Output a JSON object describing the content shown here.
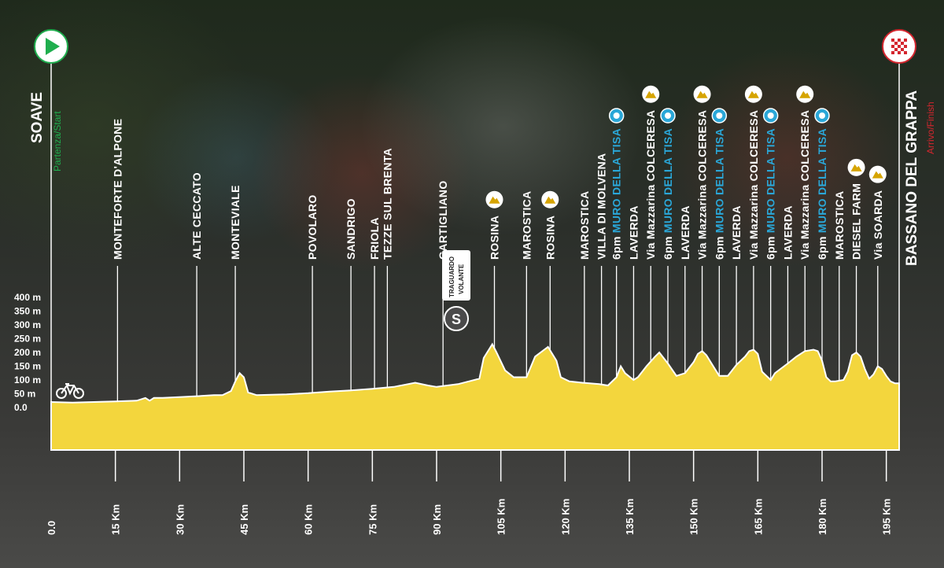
{
  "start": {
    "name": "SOAVE",
    "label": "Partenza/Start"
  },
  "finish": {
    "name": "BASSANO DEL GRAPPA",
    "label": "Arrivo/Finish"
  },
  "sprint": {
    "line1": "TRAGUARDO",
    "line2": "VOLANTE",
    "icon": "S"
  },
  "colors": {
    "profile": "#f3d63d",
    "start": "#1fae4e",
    "finish": "#d4262e",
    "gpm_text": "#2aa7d8"
  },
  "chart_data": {
    "type": "area",
    "xlabel": "",
    "ylabel": "",
    "x_unit": "Km",
    "y_unit": "m",
    "xlim": [
      0,
      198
    ],
    "ylim": [
      0,
      400
    ],
    "y_ticks": [
      "0.0",
      "50 m",
      "100 m",
      "150 m",
      "200 m",
      "250 m",
      "300 m",
      "350 m",
      "400 m"
    ],
    "x_ticks": [
      "0.0",
      "15 Km",
      "30 Km",
      "45 Km",
      "60 Km",
      "75 Km",
      "90 Km",
      "105 Km",
      "120 Km",
      "135 Km",
      "150 Km",
      "165 Km",
      "180 Km",
      "195 Km"
    ],
    "profile": {
      "x": [
        0,
        5,
        10,
        15,
        20,
        22,
        23,
        24,
        26,
        30,
        35,
        38,
        40,
        42,
        43,
        44,
        45,
        46,
        48,
        55,
        60,
        65,
        70,
        75,
        80,
        85,
        88,
        90,
        95,
        100,
        101,
        103,
        104,
        106,
        108,
        111,
        113,
        116,
        118,
        119,
        121,
        124,
        128,
        130,
        132,
        133,
        134,
        136,
        137,
        139,
        141,
        142,
        144,
        146,
        148,
        150,
        151,
        152,
        153,
        154,
        156,
        158,
        160,
        162,
        163,
        164,
        165,
        166,
        168,
        169,
        172,
        174,
        176,
        178,
        179,
        180,
        181,
        182,
        183,
        185,
        186,
        187,
        188,
        189,
        190,
        191,
        192,
        193,
        194,
        195,
        196,
        197,
        198
      ],
      "y": [
        20,
        18,
        20,
        22,
        25,
        35,
        25,
        35,
        35,
        38,
        42,
        45,
        45,
        60,
        95,
        125,
        110,
        55,
        45,
        48,
        52,
        58,
        62,
        68,
        75,
        90,
        80,
        75,
        85,
        105,
        180,
        230,
        200,
        135,
        110,
        110,
        185,
        220,
        170,
        110,
        95,
        90,
        85,
        80,
        110,
        150,
        125,
        100,
        110,
        150,
        185,
        200,
        160,
        115,
        125,
        165,
        195,
        205,
        190,
        165,
        115,
        115,
        155,
        185,
        205,
        210,
        195,
        130,
        100,
        125,
        160,
        185,
        205,
        210,
        205,
        170,
        110,
        95,
        95,
        100,
        130,
        190,
        200,
        185,
        140,
        105,
        120,
        150,
        140,
        115,
        95,
        88,
        88
      ]
    },
    "locations": [
      {
        "km": 15.5,
        "name": "MONTEFORTE D'ALPONE"
      },
      {
        "km": 34,
        "name": "ALTE CECCATO"
      },
      {
        "km": 43,
        "name": "MONTEVIALE"
      },
      {
        "km": 61,
        "name": "POVOLARO"
      },
      {
        "km": 70,
        "name": "SANDRIGO"
      },
      {
        "km": 75.5,
        "name": "FRIOLA"
      },
      {
        "km": 78.5,
        "name": "TEZZE SUL BRENTA"
      },
      {
        "km": 91.5,
        "name": "CARTIGLIANO"
      },
      {
        "km": 103.5,
        "name": "ROSINA",
        "climb": true
      },
      {
        "km": 111,
        "name": "MAROSTICA"
      },
      {
        "km": 116.5,
        "name": "ROSINA",
        "climb": true
      },
      {
        "km": 124.5,
        "name": "MAROSTICA"
      },
      {
        "km": 128.5,
        "name": "VILLA DI MOLVENA"
      },
      {
        "km": 132,
        "name": "MURO DELLA TISA",
        "gpm": true,
        "prefix": "6pm"
      },
      {
        "km": 136,
        "name": "LAVERDA"
      },
      {
        "km": 140,
        "name": "Via Mazzarina COLCERESA",
        "climb": true
      },
      {
        "km": 144,
        "name": "MURO DELLA TISA",
        "gpm": true,
        "prefix": "6pm"
      },
      {
        "km": 148,
        "name": "LAVERDA"
      },
      {
        "km": 152,
        "name": "Via Mazzarina COLCERESA",
        "climb": true
      },
      {
        "km": 156,
        "name": "MURO DELLA TISA",
        "gpm": true,
        "prefix": "6pm"
      },
      {
        "km": 160,
        "name": "LAVERDA"
      },
      {
        "km": 164,
        "name": "Via Mazzarina COLCERESA",
        "climb": true
      },
      {
        "km": 168,
        "name": "MURO DELLA TISA",
        "gpm": true,
        "prefix": "6pm"
      },
      {
        "km": 172,
        "name": "LAVERDA"
      },
      {
        "km": 176,
        "name": "Via Mazzarina COLCERESA",
        "climb": true
      },
      {
        "km": 180,
        "name": "MURO DELLA TISA",
        "gpm": true,
        "prefix": "6pm"
      },
      {
        "km": 184,
        "name": "MAROSTICA"
      },
      {
        "km": 188,
        "name": "DIESEL FARM",
        "climb": true
      },
      {
        "km": 193,
        "name": "Via SOARDA",
        "climb": true
      }
    ]
  }
}
